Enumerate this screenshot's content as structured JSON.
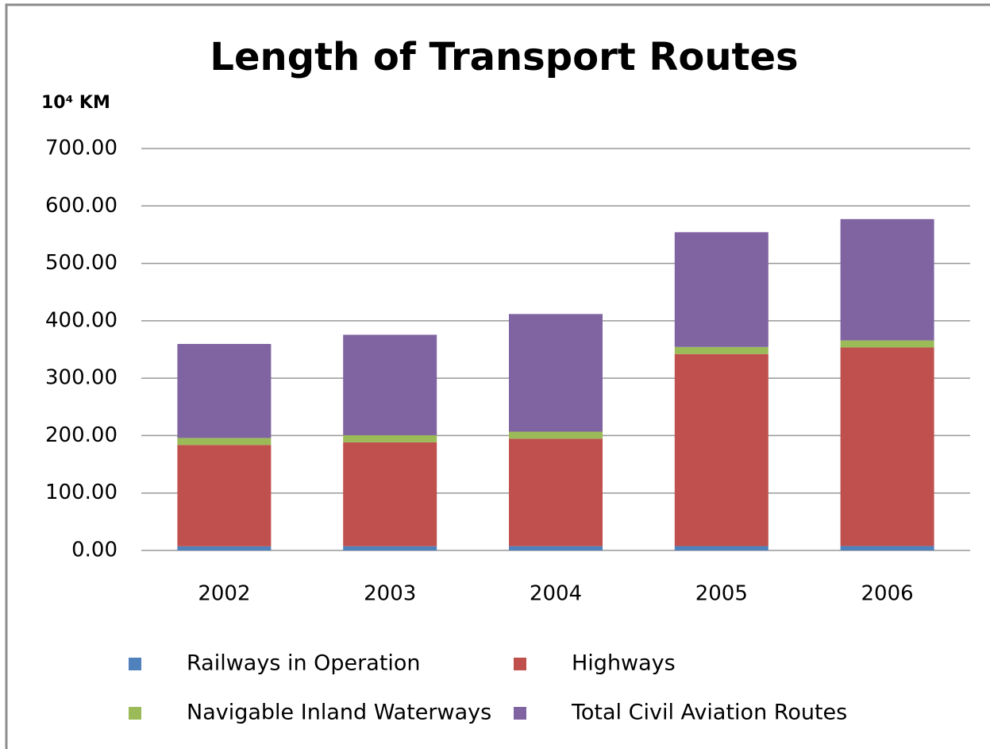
{
  "chart_data": {
    "type": "stacked_bar",
    "title": "Length of Transport Routes",
    "y_label": "10⁴ KM",
    "categories": [
      "2002",
      "2003",
      "2004",
      "2005",
      "2006"
    ],
    "series": [
      {
        "name": "Railways in Operation",
        "color": "#4f81bd",
        "values": [
          7.19,
          7.3,
          7.44,
          7.54,
          7.71
        ]
      },
      {
        "name": "Highways",
        "color": "#c0504d",
        "values": [
          176.52,
          180.98,
          187.07,
          334.52,
          345.7
        ]
      },
      {
        "name": "Navigable Inland Waterways",
        "color": "#9bbb59",
        "values": [
          12.16,
          12.4,
          12.33,
          12.33,
          12.34
        ]
      },
      {
        "name": "Total Civil Aviation Routes",
        "color": "#8064a2",
        "values": [
          163.77,
          174.95,
          204.94,
          199.85,
          211.35
        ]
      }
    ],
    "ylim": [
      0,
      700
    ],
    "yticks": [
      {
        "value": 0,
        "label": "0.00"
      },
      {
        "value": 100,
        "label": "100.00"
      },
      {
        "value": 200,
        "label": "200.00"
      },
      {
        "value": 300,
        "label": "300.00"
      },
      {
        "value": 400,
        "label": "400.00"
      },
      {
        "value": 500,
        "label": "500.00"
      },
      {
        "value": 600,
        "label": "600.00"
      },
      {
        "value": 700,
        "label": "700.00"
      }
    ],
    "grid": true
  }
}
